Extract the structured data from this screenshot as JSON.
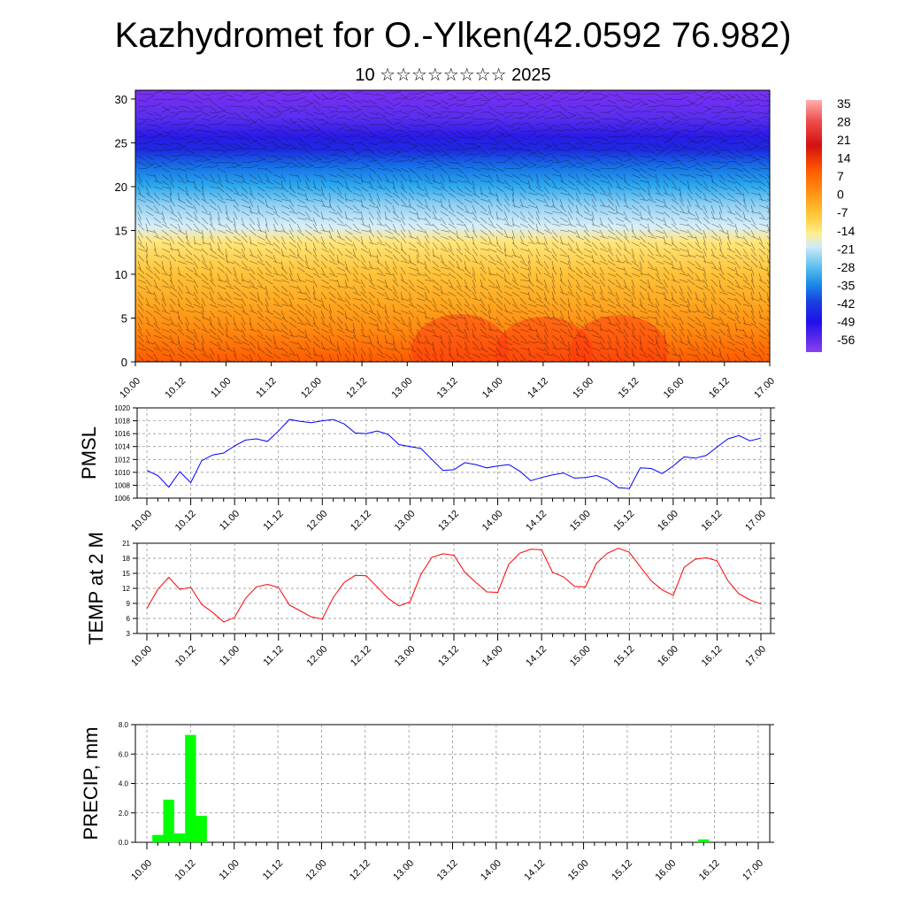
{
  "title": "Kazhydromet for O.-Ylken(42.0592 76.982)",
  "subtitle": "10 ☆☆☆☆☆☆☆☆ 2025",
  "chart_data": [
    {
      "type": "heatmap",
      "name": "vertical-cross-section",
      "title": "",
      "ylabel": "",
      "y_ticks": [
        0,
        5,
        10,
        15,
        20,
        25,
        30
      ],
      "ylim": [
        0,
        31
      ],
      "x_tick_labels": [
        "10.00",
        "10.12",
        "11.00",
        "11.12",
        "12.00",
        "12.12",
        "13.00",
        "13.12",
        "14.00",
        "14.12",
        "15.00",
        "15.12",
        "16.00",
        "16.12",
        "17.00"
      ],
      "colorbar_labels": [
        "35",
        "28",
        "21",
        "14",
        "7",
        "0",
        "-7",
        "-14",
        "-21",
        "-28",
        "-35",
        "-42",
        "-49",
        "-56"
      ],
      "colorbar_range": [
        -60,
        38
      ]
    },
    {
      "type": "line",
      "name": "pmsl",
      "ylabel": "PMSL",
      "y_tick_labels": [
        "1020",
        "1018",
        "1016",
        "1014",
        "1012",
        "1010",
        "1008",
        "1006"
      ],
      "ylim": [
        1006,
        1020
      ],
      "x_tick_labels": [
        "10.00",
        "10.12",
        "11.00",
        "11.12",
        "12.00",
        "12.12",
        "13.00",
        "13.12",
        "14.00",
        "14.12",
        "15.00",
        "15.12",
        "16.00",
        "16.12",
        "17.00"
      ],
      "series": [
        {
          "color": "#0000ff",
          "values": [
            1010.3,
            1009.5,
            1007.7,
            1010.1,
            1008.4,
            1011.8,
            1012.7,
            1013.0,
            1014.1,
            1015.0,
            1015.2,
            1014.8,
            1016.4,
            1018.2,
            1017.9,
            1017.7,
            1018.0,
            1018.2,
            1017.5,
            1016.1,
            1016.0,
            1016.4,
            1015.9,
            1014.3,
            1014.0,
            1013.7,
            1012.0,
            1010.3,
            1010.4,
            1011.5,
            1011.2,
            1010.7,
            1011.0,
            1011.2,
            1010.2,
            1008.7,
            1009.2,
            1009.6,
            1009.9,
            1009.1,
            1009.2,
            1009.5,
            1008.9,
            1007.6,
            1007.5,
            1010.7,
            1010.6,
            1009.8,
            1011.0,
            1012.4,
            1012.2,
            1012.6,
            1013.9,
            1015.2,
            1015.7,
            1014.9,
            1015.3
          ]
        }
      ]
    },
    {
      "type": "line",
      "name": "temp-2m",
      "ylabel": "TEMP at 2 M",
      "y_tick_labels": [
        "21",
        "18",
        "15",
        "12",
        "9",
        "6",
        "3"
      ],
      "ylim": [
        3,
        21
      ],
      "x_tick_labels": [
        "10.00",
        "10.12",
        "11.00",
        "11.12",
        "12.00",
        "12.12",
        "13.00",
        "13.12",
        "14.00",
        "14.12",
        "15.00",
        "15.12",
        "16.00",
        "16.12",
        "17.00"
      ],
      "series": [
        {
          "color": "#ff0000",
          "values": [
            8.0,
            11.8,
            14.2,
            11.8,
            12.2,
            8.8,
            7.2,
            5.3,
            6.2,
            10.0,
            12.3,
            12.8,
            12.2,
            8.7,
            7.5,
            6.3,
            5.9,
            10.2,
            13.2,
            14.6,
            14.5,
            12.3,
            10.0,
            8.5,
            9.3,
            14.8,
            18.2,
            18.9,
            18.6,
            15.2,
            13.2,
            11.3,
            11.2,
            16.8,
            19.0,
            19.8,
            19.7,
            15.2,
            14.3,
            12.4,
            12.3,
            17.0,
            19.0,
            20.0,
            19.2,
            16.3,
            13.5,
            11.7,
            10.6,
            16.2,
            17.8,
            18.1,
            17.5,
            13.5,
            10.9,
            9.7,
            8.9
          ]
        }
      ]
    },
    {
      "type": "bar",
      "name": "precip",
      "ylabel": "PRECIP, mm",
      "y_tick_labels": [
        "8.0",
        "6.0",
        "4.0",
        "2.0",
        "0.0"
      ],
      "ylim": [
        0,
        8
      ],
      "x_tick_labels": [
        "10.00",
        "10.12",
        "11.00",
        "11.12",
        "12.00",
        "12.12",
        "13.00",
        "13.12",
        "14.00",
        "14.12",
        "15.00",
        "15.12",
        "16.00",
        "16.12",
        "17.00"
      ],
      "series": [
        {
          "color": "#00ff00",
          "values": [
            0,
            0.5,
            2.9,
            0.6,
            7.3,
            1.8,
            0,
            0,
            0,
            0,
            0,
            0,
            0,
            0,
            0,
            0,
            0,
            0,
            0,
            0,
            0,
            0,
            0,
            0,
            0,
            0,
            0,
            0,
            0,
            0,
            0,
            0,
            0,
            0,
            0,
            0,
            0,
            0,
            0,
            0,
            0,
            0,
            0,
            0,
            0,
            0,
            0,
            0,
            0,
            0,
            0,
            0.2,
            0,
            0,
            0,
            0,
            0
          ]
        }
      ]
    }
  ]
}
